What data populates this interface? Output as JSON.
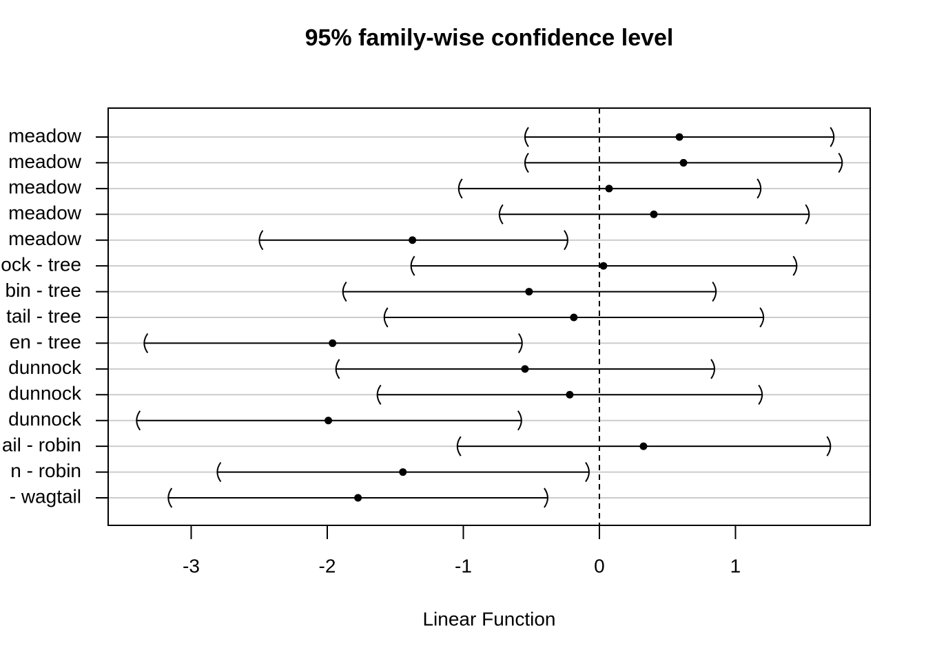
{
  "chart_data": {
    "type": "interval",
    "title": "95% family-wise confidence level",
    "xlabel": "Linear Function",
    "categories": [
      "meadow",
      "meadow",
      "meadow",
      "meadow",
      "meadow",
      "ock - tree",
      "bin - tree",
      "tail - tree",
      "en - tree",
      "dunnock",
      "dunnock",
      "dunnock",
      "ail - robin",
      "n - robin",
      "- wagtail"
    ],
    "estimates": [
      0.588,
      0.618,
      0.071,
      0.4,
      -1.374,
      0.03,
      -0.517,
      -0.188,
      -1.961,
      -0.547,
      -0.218,
      -1.992,
      0.324,
      -1.444,
      -1.774
    ],
    "lower": [
      -0.547,
      -0.547,
      -1.034,
      -0.735,
      -2.499,
      -1.384,
      -1.885,
      -1.581,
      -3.345,
      -1.936,
      -1.632,
      -3.401,
      -1.044,
      -2.808,
      -3.168
    ],
    "upper": [
      1.723,
      1.784,
      1.186,
      1.541,
      -0.233,
      1.45,
      0.857,
      1.206,
      -0.568,
      0.846,
      1.196,
      -0.573,
      1.698,
      -0.076,
      -0.38
    ],
    "xlim": [
      -3.61,
      1.99
    ],
    "xticks": [
      -3,
      -2,
      -1,
      0,
      1
    ],
    "reference_line": 0,
    "color": "#000000",
    "grid": true
  }
}
